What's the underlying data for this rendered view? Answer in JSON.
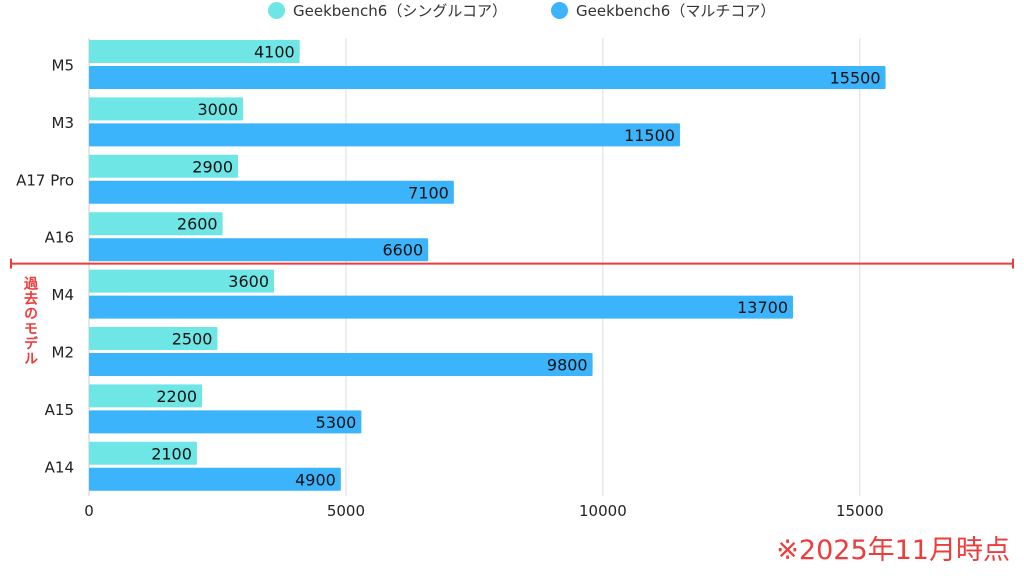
{
  "legend": {
    "single_label": "Geekbench6（シングルコア）",
    "multi_label": "Geekbench6（マルチコア）"
  },
  "colors": {
    "single": "#6fe6e6",
    "multi": "#3bb4fb",
    "divider": "#ee3b3b",
    "grid": "#dddddd",
    "text": "#222222"
  },
  "annotation": {
    "past_models": "過去のモデル",
    "as_of": "※2025年11月時点"
  },
  "chart_data": {
    "type": "bar",
    "orientation": "horizontal",
    "categories": [
      "M5",
      "M3",
      "A17 Pro",
      "A16",
      "M4",
      "M2",
      "A15",
      "A14"
    ],
    "series": [
      {
        "name": "Geekbench6（シングルコア）",
        "values": [
          4100,
          3000,
          2900,
          2600,
          3600,
          2500,
          2200,
          2100
        ]
      },
      {
        "name": "Geekbench6（マルチコア）",
        "values": [
          15500,
          11500,
          7100,
          6600,
          13700,
          9800,
          5300,
          4900
        ]
      }
    ],
    "xlim": [
      0,
      18000
    ],
    "xticks": [
      0,
      5000,
      10000,
      15000
    ],
    "grid": true,
    "legend_position": "top",
    "divider_after_category": "A16"
  }
}
